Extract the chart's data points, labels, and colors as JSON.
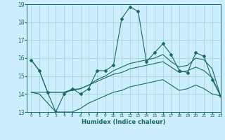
{
  "xlabel": "Humidex (Indice chaleur)",
  "background_color": "#cceeff",
  "grid_color": "#aad4d4",
  "line_color": "#1a6b60",
  "x_values": [
    0,
    1,
    2,
    3,
    4,
    5,
    6,
    7,
    8,
    9,
    10,
    11,
    12,
    13,
    14,
    15,
    16,
    17,
    18,
    19,
    20,
    21,
    22,
    23
  ],
  "line1": [
    15.9,
    15.3,
    14.1,
    13.0,
    14.0,
    14.3,
    14.0,
    14.3,
    15.3,
    15.3,
    15.6,
    18.2,
    18.85,
    18.6,
    15.8,
    16.3,
    16.8,
    16.2,
    15.3,
    15.2,
    16.3,
    16.1,
    14.8,
    13.9
  ],
  "line2": [
    15.9,
    15.3,
    14.1,
    14.1,
    14.1,
    14.25,
    14.3,
    14.5,
    14.8,
    15.0,
    15.3,
    15.5,
    15.7,
    15.8,
    15.9,
    16.0,
    16.2,
    15.8,
    15.5,
    15.6,
    16.0,
    15.9,
    15.4,
    13.9
  ],
  "line3": [
    14.1,
    14.1,
    14.1,
    14.1,
    14.1,
    14.2,
    14.3,
    14.5,
    14.7,
    14.9,
    15.1,
    15.2,
    15.4,
    15.5,
    15.6,
    15.7,
    15.8,
    15.5,
    15.2,
    15.3,
    15.5,
    15.3,
    14.9,
    13.9
  ],
  "line4": [
    14.1,
    14.0,
    13.5,
    13.0,
    13.0,
    13.0,
    13.2,
    13.5,
    13.7,
    13.9,
    14.1,
    14.2,
    14.4,
    14.5,
    14.6,
    14.7,
    14.8,
    14.5,
    14.2,
    14.3,
    14.5,
    14.3,
    14.0,
    13.9
  ],
  "ylim": [
    13,
    19
  ],
  "xlim": [
    -0.5,
    23
  ],
  "yticks": [
    13,
    14,
    15,
    16,
    17,
    18,
    19
  ],
  "xticks": [
    0,
    1,
    2,
    3,
    4,
    5,
    6,
    7,
    8,
    9,
    10,
    11,
    12,
    13,
    14,
    15,
    16,
    17,
    18,
    19,
    20,
    21,
    22,
    23
  ]
}
